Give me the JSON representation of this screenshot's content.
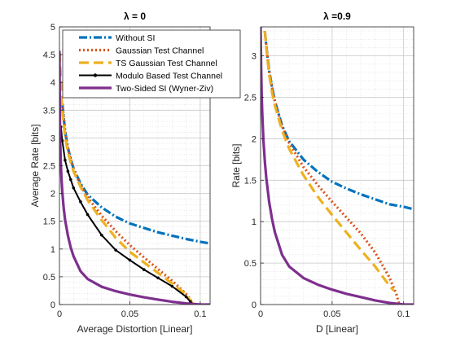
{
  "chart_data": [
    {
      "type": "line",
      "title": "λ = 0",
      "xlabel": "Average Distortion [Linear]",
      "ylabel": "Average Rate [bits]",
      "xlim": [
        0,
        0.107
      ],
      "ylim": [
        0,
        5
      ],
      "xticks": [
        0,
        0.05,
        0.1
      ],
      "xtick_labels": [
        "0",
        "0.05",
        "0.1"
      ],
      "yticks": [
        0,
        0.5,
        1,
        1.5,
        2,
        2.5,
        3,
        3.5,
        4,
        4.5,
        5
      ],
      "ytick_labels": [
        "0",
        "0.5",
        "1",
        "1.5",
        "2",
        "2.5",
        "3",
        "3.5",
        "4",
        "4.5",
        "5"
      ],
      "grid": true,
      "minor_grid": true,
      "legend_position": "top-right",
      "series": [
        {
          "name": "Without SI",
          "color": "#0072BD",
          "style": "dash-dot",
          "x": [
            0.002,
            0.004,
            0.006,
            0.008,
            0.01,
            0.015,
            0.02,
            0.03,
            0.04,
            0.05,
            0.06,
            0.07,
            0.08,
            0.09,
            0.1,
            0.107
          ],
          "y": [
            3.62,
            3.12,
            2.82,
            2.62,
            2.45,
            2.18,
            1.98,
            1.75,
            1.58,
            1.46,
            1.38,
            1.3,
            1.24,
            1.18,
            1.13,
            1.1
          ]
        },
        {
          "name": "Gaussian Test Channel",
          "color": "#D95319",
          "style": "dotted",
          "x": [
            0.002,
            0.004,
            0.006,
            0.008,
            0.01,
            0.015,
            0.02,
            0.03,
            0.04,
            0.05,
            0.06,
            0.07,
            0.08,
            0.09,
            0.093,
            0.095
          ],
          "y": [
            3.62,
            3.12,
            2.82,
            2.62,
            2.45,
            2.15,
            1.93,
            1.6,
            1.32,
            1.07,
            0.85,
            0.64,
            0.43,
            0.19,
            0.09,
            0.0
          ]
        },
        {
          "name": "TS Gaussian Test Channel",
          "color": "#EDB120",
          "style": "dashed",
          "x": [
            0.0,
            0.002,
            0.004,
            0.006,
            0.008,
            0.01,
            0.015,
            0.02,
            0.03,
            0.04,
            0.05,
            0.06,
            0.07,
            0.08,
            0.09,
            0.095
          ],
          "y": [
            4.55,
            3.5,
            3.02,
            2.75,
            2.56,
            2.4,
            2.12,
            1.88,
            1.52,
            1.2,
            0.95,
            0.76,
            0.57,
            0.38,
            0.18,
            0.0
          ]
        },
        {
          "name": "Modulo Based Test Channel",
          "color": "#000000",
          "style": "solid-marker",
          "x": [
            0.001,
            0.002,
            0.004,
            0.006,
            0.008,
            0.01,
            0.015,
            0.02,
            0.03,
            0.04,
            0.05,
            0.06,
            0.07,
            0.08,
            0.09,
            0.093,
            0.095
          ],
          "y": [
            3.2,
            2.95,
            2.6,
            2.4,
            2.25,
            2.1,
            1.85,
            1.62,
            1.25,
            0.98,
            0.8,
            0.63,
            0.48,
            0.33,
            0.14,
            0.05,
            0.0
          ]
        },
        {
          "name": "Two-Sided SI (Wyner-Ziv)",
          "color": "#7E2F8E",
          "style": "solid",
          "x": [
            0.0,
            0.0003,
            0.0006,
            0.001,
            0.0015,
            0.002,
            0.003,
            0.004,
            0.006,
            0.008,
            0.01,
            0.015,
            0.02,
            0.03,
            0.04,
            0.05,
            0.06,
            0.07,
            0.08,
            0.09,
            0.1,
            0.107
          ],
          "y": [
            4.55,
            3.4,
            2.9,
            2.53,
            2.24,
            2.03,
            1.74,
            1.53,
            1.24,
            1.03,
            0.87,
            0.6,
            0.46,
            0.32,
            0.24,
            0.18,
            0.13,
            0.09,
            0.05,
            0.02,
            0.0,
            0.0
          ]
        }
      ]
    },
    {
      "type": "line",
      "title": "λ =0.9",
      "xlabel": "D [Linear]",
      "ylabel": "Rate [bits]",
      "xlim": [
        0,
        0.107
      ],
      "ylim": [
        0,
        3.35
      ],
      "xticks": [
        0,
        0.05,
        0.1
      ],
      "xtick_labels": [
        "0",
        "0.05",
        "0.1"
      ],
      "yticks": [
        0,
        0.5,
        1,
        1.5,
        2,
        2.5,
        3
      ],
      "ytick_labels": [
        "0",
        "0.5",
        "1",
        "1.5",
        "2",
        "2.5",
        "3"
      ],
      "grid": true,
      "minor_grid": true,
      "series": [
        {
          "name": "Without SI",
          "color": "#0072BD",
          "style": "dash-dot",
          "x": [
            0.003,
            0.004,
            0.006,
            0.008,
            0.01,
            0.015,
            0.02,
            0.03,
            0.04,
            0.05,
            0.06,
            0.07,
            0.08,
            0.09,
            0.1,
            0.107
          ],
          "y": [
            3.3,
            3.12,
            2.82,
            2.62,
            2.45,
            2.16,
            1.97,
            1.75,
            1.6,
            1.48,
            1.4,
            1.33,
            1.27,
            1.21,
            1.18,
            1.15
          ]
        },
        {
          "name": "Gaussian Test Channel",
          "color": "#D95319",
          "style": "dotted",
          "x": [
            0.003,
            0.004,
            0.006,
            0.008,
            0.01,
            0.015,
            0.02,
            0.03,
            0.04,
            0.05,
            0.06,
            0.07,
            0.08,
            0.09,
            0.095,
            0.097
          ],
          "y": [
            3.3,
            3.12,
            2.82,
            2.62,
            2.45,
            2.15,
            1.95,
            1.66,
            1.44,
            1.24,
            1.05,
            0.86,
            0.63,
            0.33,
            0.12,
            0.0
          ]
        },
        {
          "name": "TS Gaussian Test Channel",
          "color": "#EDB120",
          "style": "dashed",
          "x": [
            0.003,
            0.004,
            0.006,
            0.008,
            0.01,
            0.015,
            0.02,
            0.03,
            0.04,
            0.05,
            0.06,
            0.07,
            0.08,
            0.09,
            0.093
          ],
          "y": [
            3.3,
            3.1,
            2.78,
            2.56,
            2.4,
            2.1,
            1.88,
            1.56,
            1.3,
            1.08,
            0.87,
            0.66,
            0.46,
            0.23,
            0.17
          ]
        },
        {
          "name": "Two-Sided SI (Wyner-Ziv)",
          "color": "#7E2F8E",
          "style": "solid",
          "x": [
            0.0,
            0.0004,
            0.0008,
            0.0012,
            0.002,
            0.003,
            0.004,
            0.006,
            0.008,
            0.01,
            0.015,
            0.02,
            0.03,
            0.04,
            0.05,
            0.06,
            0.07,
            0.08,
            0.09,
            0.1,
            0.107
          ],
          "y": [
            3.35,
            2.85,
            2.5,
            2.3,
            1.98,
            1.72,
            1.53,
            1.24,
            1.03,
            0.87,
            0.6,
            0.46,
            0.32,
            0.24,
            0.18,
            0.13,
            0.09,
            0.05,
            0.02,
            0.0,
            0.0
          ]
        }
      ]
    }
  ]
}
